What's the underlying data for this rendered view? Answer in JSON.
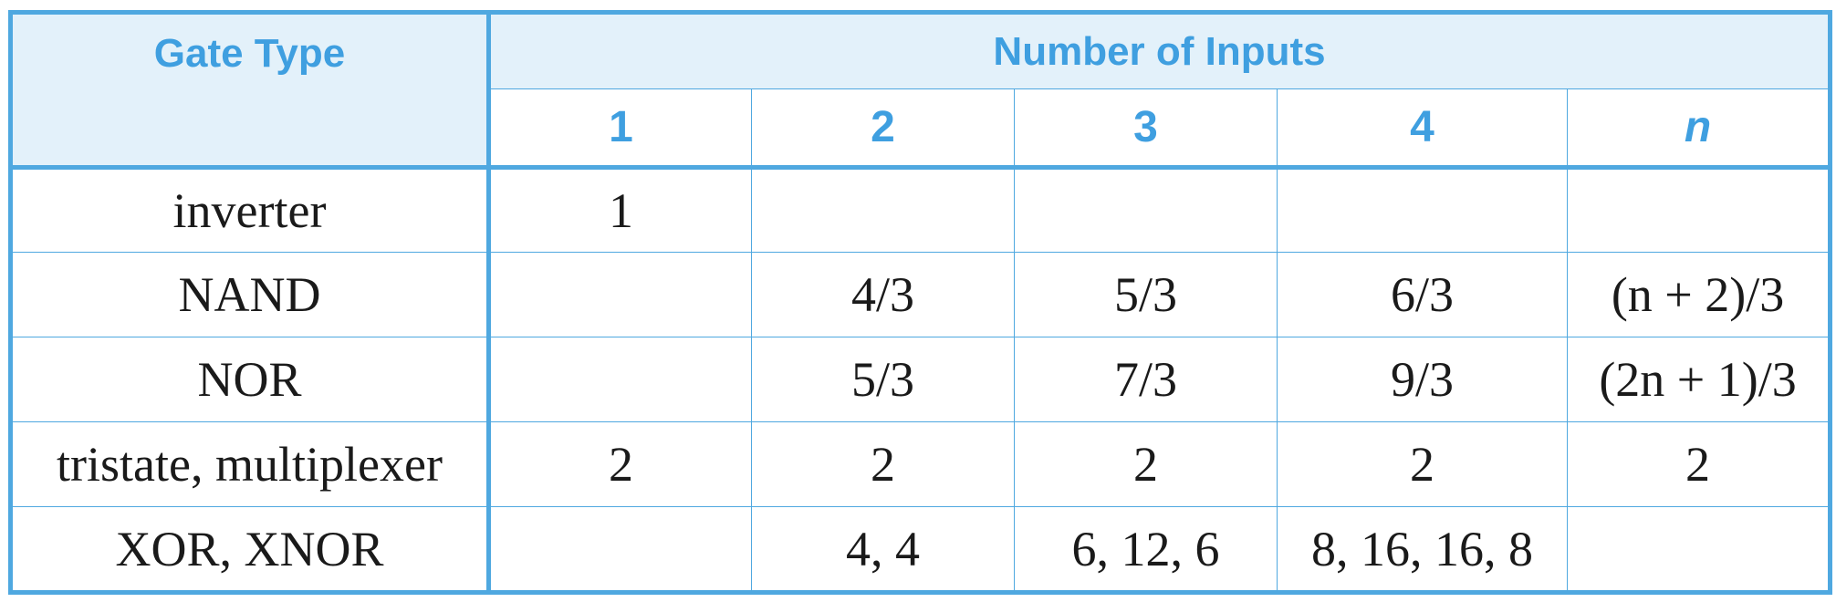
{
  "header": {
    "gate_type": "Gate Type",
    "number_of_inputs": "Number of Inputs",
    "input_columns": [
      "1",
      "2",
      "3",
      "4",
      "n"
    ]
  },
  "rows": [
    {
      "gate": "inverter",
      "cells": [
        "1",
        "",
        "",
        "",
        ""
      ]
    },
    {
      "gate": "NAND",
      "cells": [
        "",
        "4/3",
        "5/3",
        "6/3",
        "(n + 2)/3"
      ]
    },
    {
      "gate": "NOR",
      "cells": [
        "",
        "5/3",
        "7/3",
        "9/3",
        "(2n + 1)/3"
      ]
    },
    {
      "gate": "tristate, multiplexer",
      "cells": [
        "2",
        "2",
        "2",
        "2",
        "2"
      ]
    },
    {
      "gate": "XOR, XNOR",
      "cells": [
        "",
        "4, 4",
        "6, 12, 6",
        "8, 16, 16, 8",
        ""
      ]
    }
  ],
  "colors": {
    "accent": "#4fa8e0",
    "header_text": "#3f9fe0",
    "header_bg": "#e3f1fa"
  }
}
